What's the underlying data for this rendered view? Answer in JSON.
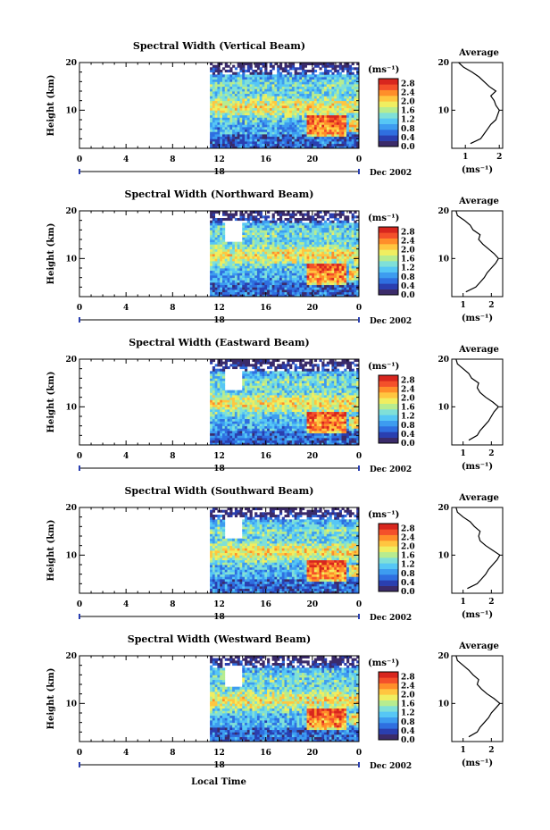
{
  "figure": {
    "date_label": "Dec 2002",
    "xlabel": "Local Time",
    "ylabel": "Height (km)",
    "day_label": "18",
    "unit_label": "(ms⁻¹)",
    "average_title": "Average"
  },
  "colorbar": {
    "ticks": [
      "0.0",
      "0.4",
      "0.8",
      "1.2",
      "1.6",
      "2.0",
      "2.4",
      "2.8"
    ],
    "colors": [
      "#3b2b6a",
      "#2a3fb0",
      "#2f6fe0",
      "#3d9cf0",
      "#56c7f5",
      "#7fe0d8",
      "#b7ec8f",
      "#f0ee60",
      "#ffc640",
      "#ff8e2a",
      "#f4502a",
      "#d8261e"
    ]
  },
  "chart_data": [
    {
      "type": "heatmap",
      "title": "Spectral Width (Vertical Beam)",
      "xlabel": "Local Time",
      "ylabel": "Height (km)",
      "xlim": [
        0,
        24
      ],
      "ylim": [
        2,
        20
      ],
      "xticks": [
        "0",
        "4",
        "8",
        "12",
        "16",
        "20",
        "0"
      ],
      "yticks": [
        "10",
        "20"
      ],
      "data_start_hour": 11.2,
      "colorbar_label": "(ms⁻¹)",
      "colorbar_range": [
        0.0,
        2.8
      ],
      "average_profile": {
        "title": "Average",
        "xlabel": "(ms⁻¹)",
        "xticks": [
          "1",
          "2"
        ],
        "xlim": [
          0.6,
          2.1
        ],
        "heights": [
          3,
          4,
          5,
          6,
          7,
          8,
          9,
          10,
          11,
          12,
          13,
          14,
          15,
          16,
          17,
          18,
          19,
          20
        ],
        "values": [
          1.15,
          1.45,
          1.55,
          1.65,
          1.75,
          1.9,
          1.95,
          2.0,
          1.9,
          1.85,
          1.75,
          1.9,
          1.7,
          1.55,
          1.4,
          1.2,
          0.95,
          0.8
        ]
      }
    },
    {
      "type": "heatmap",
      "title": "Spectral Width (Northward Beam)",
      "xlabel": "Local Time",
      "ylabel": "Height (km)",
      "xlim": [
        0,
        24
      ],
      "ylim": [
        2,
        20
      ],
      "xticks": [
        "0",
        "4",
        "8",
        "12",
        "16",
        "20",
        "0"
      ],
      "yticks": [
        "10",
        "20"
      ],
      "data_start_hour": 11.2,
      "colorbar_label": "(ms⁻¹)",
      "colorbar_range": [
        0.0,
        2.8
      ],
      "average_profile": {
        "title": "Average",
        "xlabel": "(ms⁻¹)",
        "xticks": [
          "1",
          "2"
        ],
        "xlim": [
          0.6,
          2.4
        ],
        "heights": [
          3,
          4,
          5,
          6,
          7,
          8,
          9,
          10,
          11,
          12,
          13,
          14,
          15,
          16,
          17,
          18,
          19,
          20
        ],
        "values": [
          1.1,
          1.45,
          1.6,
          1.75,
          1.85,
          2.0,
          2.15,
          2.25,
          2.1,
          1.9,
          1.7,
          1.55,
          1.6,
          1.35,
          1.25,
          1.05,
          0.8,
          0.75
        ]
      }
    },
    {
      "type": "heatmap",
      "title": "Spectral Width (Eastward Beam)",
      "xlabel": "Local Time",
      "ylabel": "Height (km)",
      "xlim": [
        0,
        24
      ],
      "ylim": [
        2,
        20
      ],
      "xticks": [
        "0",
        "4",
        "8",
        "12",
        "16",
        "20",
        "0"
      ],
      "yticks": [
        "10",
        "20"
      ],
      "data_start_hour": 11.2,
      "colorbar_label": "(ms⁻¹)",
      "colorbar_range": [
        0.0,
        2.8
      ],
      "average_profile": {
        "title": "Average",
        "xlabel": "(ms⁻¹)",
        "xticks": [
          "1",
          "2"
        ],
        "xlim": [
          0.6,
          2.4
        ],
        "heights": [
          3,
          4,
          5,
          6,
          7,
          8,
          9,
          10,
          11,
          12,
          13,
          14,
          15,
          16,
          17,
          18,
          19,
          20
        ],
        "values": [
          1.2,
          1.5,
          1.6,
          1.75,
          1.9,
          2.0,
          2.1,
          2.25,
          2.05,
          1.8,
          1.6,
          1.5,
          1.55,
          1.3,
          1.2,
          1.0,
          0.8,
          0.75
        ]
      }
    },
    {
      "type": "heatmap",
      "title": "Spectral Width (Southward Beam)",
      "xlabel": "Local Time",
      "ylabel": "Height (km)",
      "xlim": [
        0,
        24
      ],
      "ylim": [
        2,
        20
      ],
      "xticks": [
        "0",
        "4",
        "8",
        "12",
        "16",
        "20",
        "0"
      ],
      "yticks": [
        "10",
        "20"
      ],
      "data_start_hour": 11.2,
      "colorbar_label": "(ms⁻¹)",
      "colorbar_range": [
        0.0,
        2.8
      ],
      "average_profile": {
        "title": "Average",
        "xlabel": "(ms⁻¹)",
        "xticks": [
          "1",
          "2"
        ],
        "xlim": [
          0.6,
          2.4
        ],
        "heights": [
          3,
          4,
          5,
          6,
          7,
          8,
          9,
          10,
          11,
          12,
          13,
          14,
          15,
          16,
          17,
          18,
          19,
          20
        ],
        "values": [
          1.15,
          1.5,
          1.65,
          1.8,
          1.9,
          2.05,
          2.2,
          2.3,
          2.05,
          1.8,
          1.6,
          1.55,
          1.6,
          1.4,
          1.25,
          1.0,
          0.8,
          0.75
        ]
      }
    },
    {
      "type": "heatmap",
      "title": "Spectral Width (Westward Beam)",
      "xlabel": "Local Time",
      "ylabel": "Height (km)",
      "xlim": [
        0,
        24
      ],
      "ylim": [
        2,
        20
      ],
      "xticks": [
        "0",
        "4",
        "8",
        "12",
        "16",
        "20",
        "0"
      ],
      "yticks": [
        "10",
        "20"
      ],
      "data_start_hour": 11.2,
      "colorbar_label": "(ms⁻¹)",
      "colorbar_range": [
        0.0,
        2.8
      ],
      "average_profile": {
        "title": "Average",
        "xlabel": "(ms⁻¹)",
        "xticks": [
          "1",
          "2"
        ],
        "xlim": [
          0.6,
          2.4
        ],
        "heights": [
          3,
          4,
          5,
          6,
          7,
          8,
          9,
          10,
          11,
          12,
          13,
          14,
          15,
          16,
          17,
          18,
          19,
          20
        ],
        "values": [
          1.2,
          1.5,
          1.6,
          1.75,
          1.9,
          2.0,
          2.15,
          2.3,
          2.1,
          1.85,
          1.65,
          1.5,
          1.55,
          1.35,
          1.2,
          1.0,
          0.8,
          0.75
        ]
      }
    }
  ]
}
